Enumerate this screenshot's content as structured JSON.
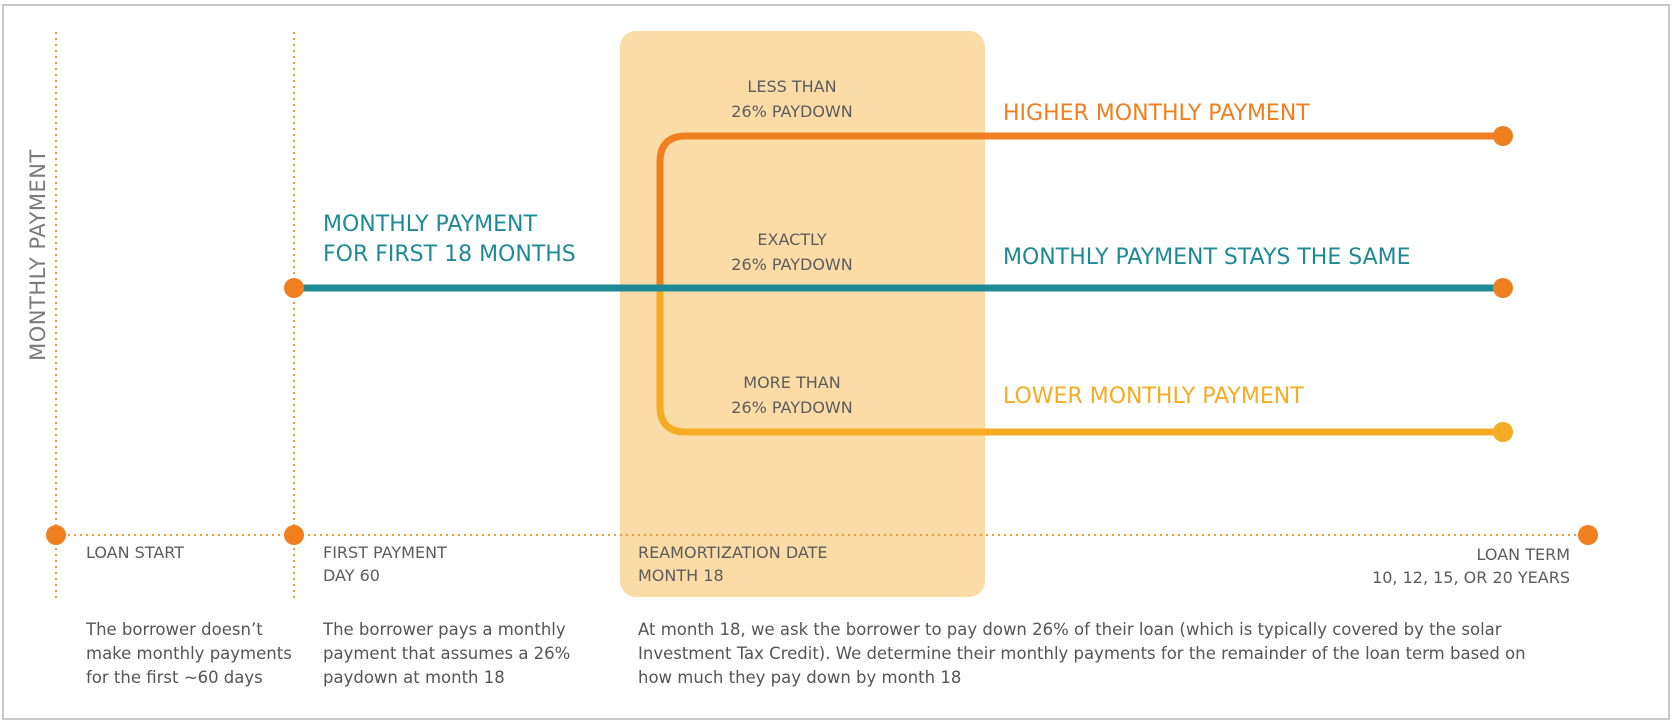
{
  "axis": {
    "y_label": "MONTHLY PAYMENT"
  },
  "window": {
    "label": ""
  },
  "initial_payment": {
    "line1": "MONTHLY PAYMENT",
    "line2": "FOR FIRST 18 MONTHS"
  },
  "outcomes": [
    {
      "line1": "LESS THAN",
      "line2": "26% PAYDOWN",
      "result": "HIGHER MONTHLY PAYMENT",
      "color": "#f07f1f"
    },
    {
      "line1": "EXACTLY",
      "line2": "26% PAYDOWN",
      "result": "MONTHLY PAYMENT STAYS THE SAME",
      "color": "#1e8a96"
    },
    {
      "line1": "MORE THAN",
      "line2": "26% PAYDOWN",
      "result": "LOWER MONTHLY PAYMENT",
      "color": "#f5ac22"
    }
  ],
  "milestones": [
    {
      "title": "LOAN START",
      "subtitle": ""
    },
    {
      "title": "FIRST PAYMENT",
      "subtitle": "DAY 60"
    },
    {
      "title": "REAMORTIZATION DATE",
      "subtitle": "MONTH 18"
    },
    {
      "title": "LOAN TERM",
      "subtitle": "10, 12, 15, OR 20 YEARS"
    }
  ],
  "descriptions": [
    "The borrower doesn’t make monthly payments for the first ~60 days",
    "The borrower pays a monthly payment that assumes a 26% paydown at month 18",
    "At month 18, we ask the borrower to pay down 26% of their loan (which is typically covered by the solar Investment Tax Credit). We determine their monthly payments for the remainder of the loan term based on how much they pay down by month 18"
  ],
  "colors": {
    "timeline": "#f39a3d",
    "highlight": "#fbdca6",
    "teal": "#1e8a96",
    "orange": "#f07f1f",
    "gold": "#f5ac22"
  }
}
